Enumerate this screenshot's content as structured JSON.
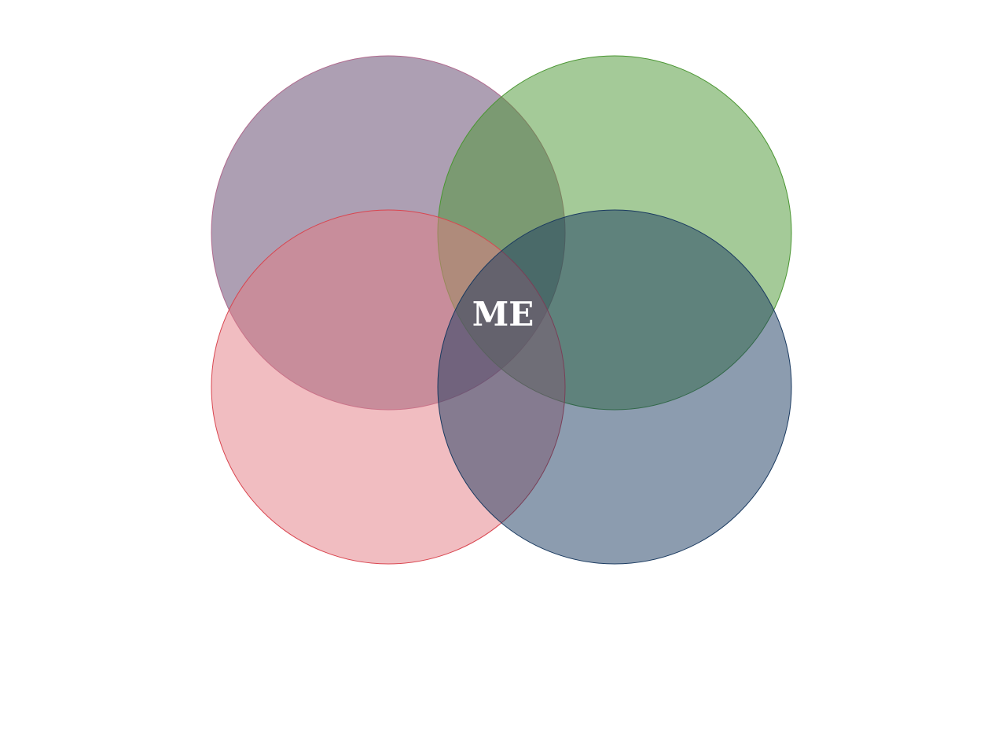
{
  "diagram": {
    "type": "venn",
    "center_label": "ME",
    "circles": [
      {
        "name": "top-left",
        "fill": "#5b3f67",
        "stroke": "#b06a8e"
      },
      {
        "name": "top-right",
        "fill": "#4a9632",
        "stroke": "#4a9632"
      },
      {
        "name": "bottom-left",
        "fill": "#e47c84",
        "stroke": "#d9454f"
      },
      {
        "name": "bottom-right",
        "fill": "#1a3a60",
        "stroke": "#1a3a60"
      }
    ]
  }
}
